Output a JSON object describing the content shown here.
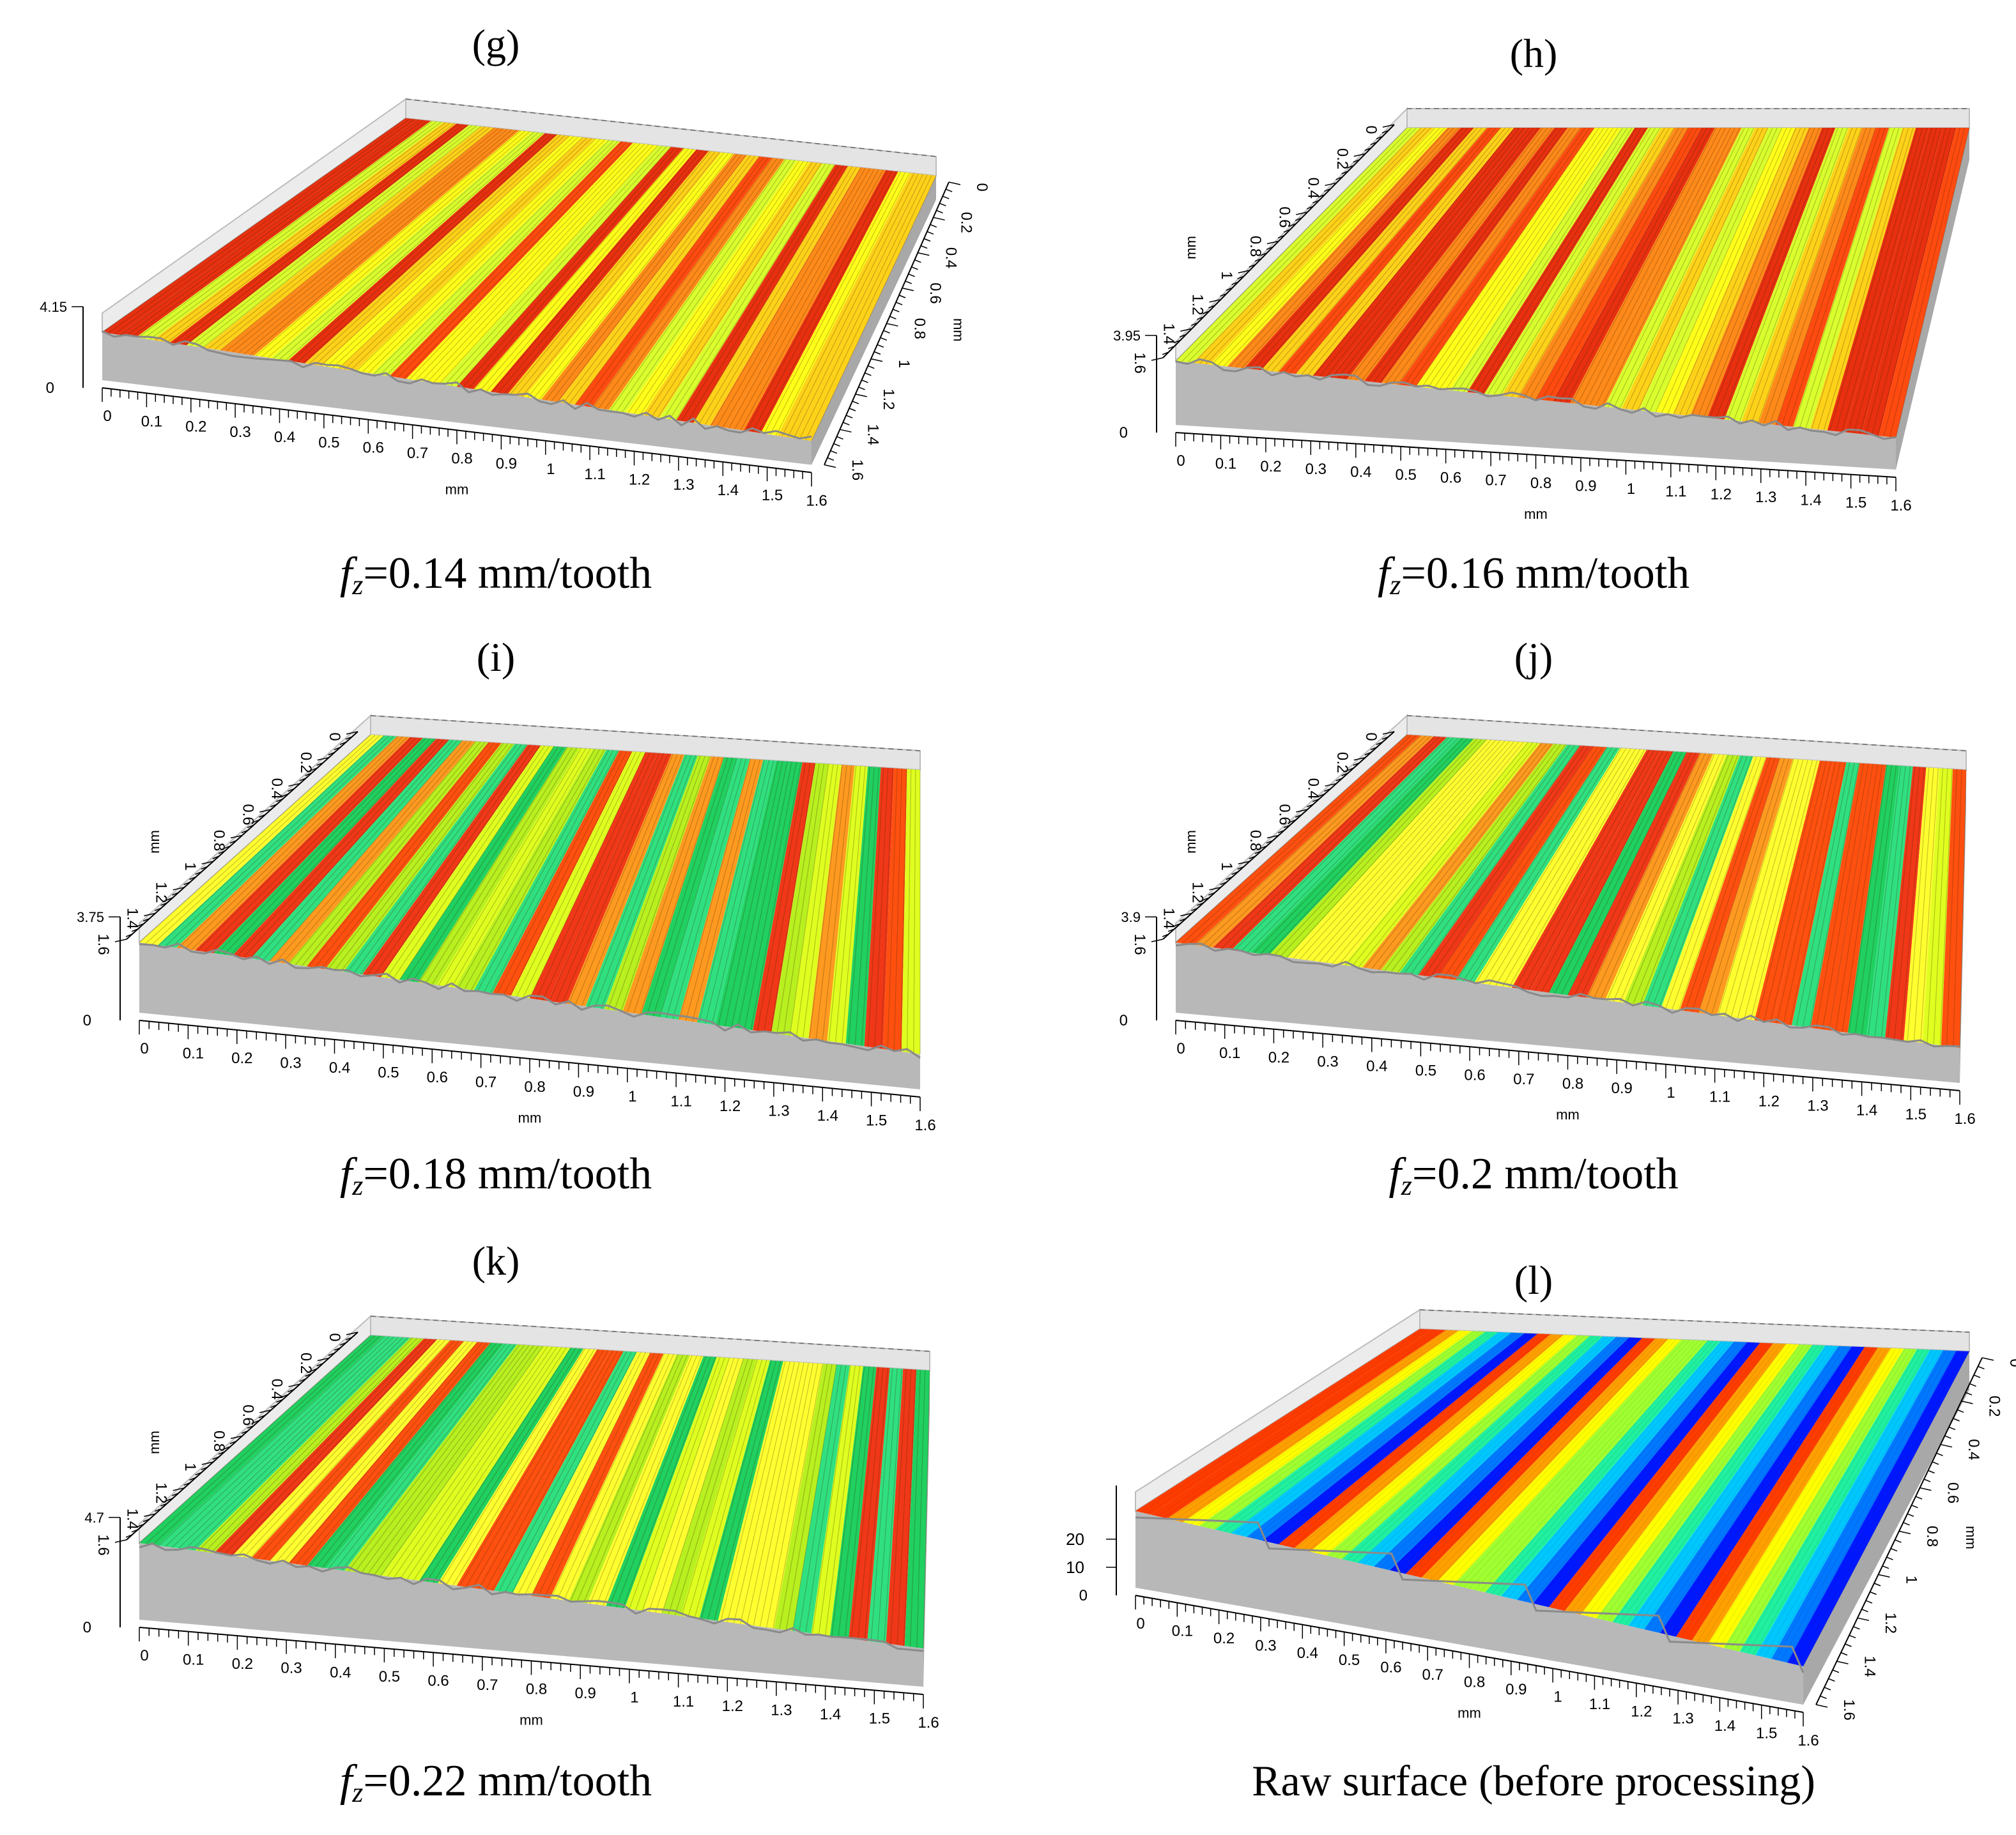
{
  "figure": {
    "colors": {
      "warm": [
        "#d9ff2e",
        "#ffff1a",
        "#ffd21a",
        "#ff8a1a",
        "#ff4a10",
        "#e83010"
      ],
      "warm_green": [
        "#b8f020",
        "#dfff20",
        "#ffff30",
        "#ff9a20",
        "#ff5010",
        "#f03818",
        "#20d060",
        "#30e080"
      ],
      "rainbow": [
        "#0018ff",
        "#0078ff",
        "#00c8ff",
        "#20f0a0",
        "#a0ff30",
        "#ffff00",
        "#ffa000",
        "#ff3c00"
      ],
      "base": "#b8b8b8",
      "frame": "#bcbcbc"
    }
  },
  "chart_data": [
    {
      "type": "surface3d",
      "panel": "(g)",
      "label_letter": "g",
      "caption_symbol": "f",
      "caption_sub": "z",
      "caption_value": "=0.14 mm/tooth",
      "height_value": "4.15",
      "zero_label": "0",
      "x_unit": "mm",
      "y_unit": "mm",
      "x_ticks": [
        "0",
        "0.1",
        "0.2",
        "0.3",
        "0.4",
        "0.5",
        "0.6",
        "0.7",
        "0.8",
        "0.9",
        "1",
        "1.1",
        "1.2",
        "1.3",
        "1.4",
        "1.5",
        "1.6"
      ],
      "y_ticks": [
        "0",
        "0.2",
        "0.4",
        "0.6",
        "0.8",
        "1",
        "1.2",
        "1.4",
        "1.6"
      ],
      "colormap": "warm"
    },
    {
      "type": "surface3d",
      "panel": "(h)",
      "label_letter": "h",
      "caption_symbol": "f",
      "caption_sub": "z",
      "caption_value": "=0.16 mm/tooth",
      "height_value": "3.95",
      "zero_label": "0",
      "x_unit": "mm",
      "y_unit": "mm",
      "x_ticks": [
        "0",
        "0.1",
        "0.2",
        "0.3",
        "0.4",
        "0.5",
        "0.6",
        "0.7",
        "0.8",
        "0.9",
        "1",
        "1.1",
        "1.2",
        "1.3",
        "1.4",
        "1.5",
        "1.6"
      ],
      "y_ticks": [
        "0",
        "0.2",
        "0.4",
        "0.6",
        "0.8",
        "1",
        "1.2",
        "1.4",
        "1.6"
      ],
      "colormap": "warm"
    },
    {
      "type": "surface3d",
      "panel": "(i)",
      "label_letter": "i",
      "caption_symbol": "f",
      "caption_sub": "z",
      "caption_value": "=0.18 mm/tooth",
      "height_value": "3.75",
      "zero_label": "0",
      "x_unit": "mm",
      "y_unit": "mm",
      "x_ticks": [
        "0",
        "0.1",
        "0.2",
        "0.3",
        "0.4",
        "0.5",
        "0.6",
        "0.7",
        "0.8",
        "0.9",
        "1",
        "1.1",
        "1.2",
        "1.3",
        "1.4",
        "1.5",
        "1.6"
      ],
      "y_ticks": [
        "0",
        "0.2",
        "0.4",
        "0.6",
        "0.8",
        "1",
        "1.2",
        "1.4",
        "1.6"
      ],
      "colormap": "warm_green"
    },
    {
      "type": "surface3d",
      "panel": "(j)",
      "label_letter": "j",
      "caption_symbol": "f",
      "caption_sub": "z",
      "caption_value": "=0.2 mm/tooth",
      "height_value": "3.9",
      "zero_label": "0",
      "x_unit": "mm",
      "y_unit": "mm",
      "x_ticks": [
        "0",
        "0.1",
        "0.2",
        "0.3",
        "0.4",
        "0.5",
        "0.6",
        "0.7",
        "0.8",
        "0.9",
        "1",
        "1.1",
        "1.2",
        "1.3",
        "1.4",
        "1.5",
        "1.6"
      ],
      "y_ticks": [
        "0",
        "0.2",
        "0.4",
        "0.6",
        "0.8",
        "1",
        "1.2",
        "1.4",
        "1.6"
      ],
      "colormap": "warm_green"
    },
    {
      "type": "surface3d",
      "panel": "(k)",
      "label_letter": "k",
      "caption_symbol": "f",
      "caption_sub": "z",
      "caption_value": "=0.22 mm/tooth",
      "height_value": "4.7",
      "zero_label": "0",
      "x_unit": "mm",
      "y_unit": "mm",
      "x_ticks": [
        "0",
        "0.1",
        "0.2",
        "0.3",
        "0.4",
        "0.5",
        "0.6",
        "0.7",
        "0.8",
        "0.9",
        "1",
        "1.1",
        "1.2",
        "1.3",
        "1.4",
        "1.5",
        "1.6"
      ],
      "y_ticks": [
        "0",
        "0.2",
        "0.4",
        "0.6",
        "0.8",
        "1",
        "1.2",
        "1.4",
        "1.6"
      ],
      "colormap": "warm_green"
    },
    {
      "type": "surface3d",
      "panel": "(l)",
      "label_letter": "l",
      "caption_text": "Raw surface (before processing)",
      "z_ticks": [
        "0",
        "10",
        "20"
      ],
      "zero_label": "0",
      "x_unit": "mm",
      "y_unit": "mm",
      "x_ticks": [
        "0",
        "0.1",
        "0.2",
        "0.3",
        "0.4",
        "0.5",
        "0.6",
        "0.7",
        "0.8",
        "0.9",
        "1",
        "1.1",
        "1.2",
        "1.3",
        "1.4",
        "1.5",
        "1.6"
      ],
      "y_ticks": [
        "0",
        "0.2",
        "0.4",
        "0.6",
        "0.8",
        "1",
        "1.2",
        "1.4",
        "1.6"
      ],
      "colormap": "rainbow"
    }
  ]
}
